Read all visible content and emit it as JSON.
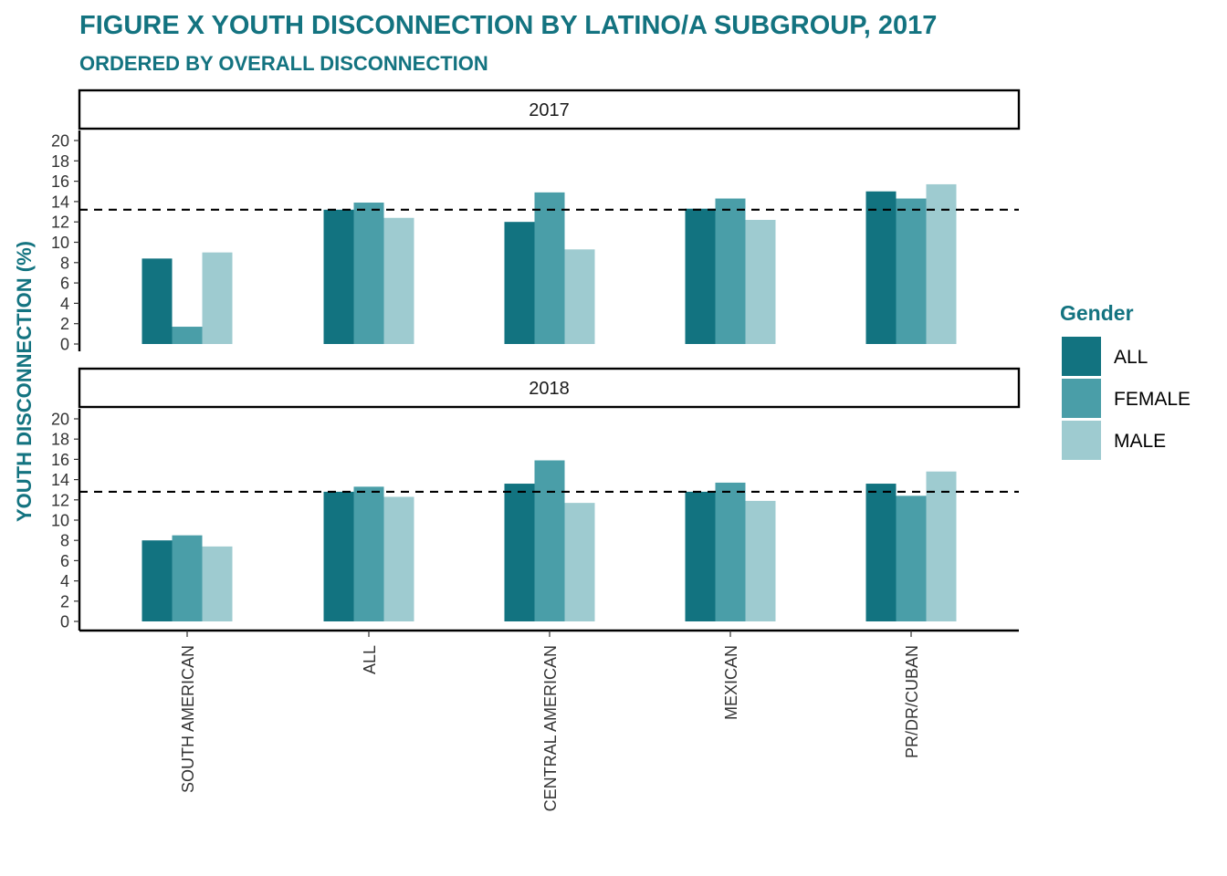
{
  "title": "FIGURE X YOUTH DISCONNECTION BY LATINO/A SUBGROUP, 2017",
  "subtitle": "ORDERED BY OVERALL DISCONNECTION",
  "colors": {
    "accent": "#137380",
    "series": [
      "#127380",
      "#4a9ea8",
      "#9ecbd0"
    ],
    "reference_line": "#000000"
  },
  "chart_data": {
    "type": "bar",
    "xlabel": "",
    "ylabel": "YOUTH DISCONNECTION (%)",
    "ylim": [
      0,
      20
    ],
    "yticks": [
      0,
      2,
      4,
      6,
      8,
      10,
      12,
      14,
      16,
      18,
      20
    ],
    "grid": false,
    "legend_title": "Gender",
    "legend_position": "right",
    "categories": [
      "SOUTH AMERICAN",
      "ALL",
      "CENTRAL AMERICAN",
      "MEXICAN",
      "PR/DR/CUBAN"
    ],
    "series_names": [
      "ALL",
      "FEMALE",
      "MALE"
    ],
    "panels": [
      {
        "label": "2017",
        "reference_line": 13.2,
        "series": [
          {
            "name": "ALL",
            "values": [
              8.4,
              13.2,
              12.0,
              13.3,
              15.0
            ]
          },
          {
            "name": "FEMALE",
            "values": [
              1.7,
              13.9,
              14.9,
              14.3,
              14.3
            ]
          },
          {
            "name": "MALE",
            "values": [
              9.0,
              12.4,
              9.3,
              12.2,
              15.7
            ]
          }
        ]
      },
      {
        "label": "2018",
        "reference_line": 12.8,
        "series": [
          {
            "name": "ALL",
            "values": [
              8.0,
              12.8,
              13.6,
              12.8,
              13.6
            ]
          },
          {
            "name": "FEMALE",
            "values": [
              8.5,
              13.3,
              15.9,
              13.7,
              12.4
            ]
          },
          {
            "name": "MALE",
            "values": [
              7.4,
              12.3,
              11.7,
              11.9,
              14.8
            ]
          }
        ]
      }
    ]
  }
}
